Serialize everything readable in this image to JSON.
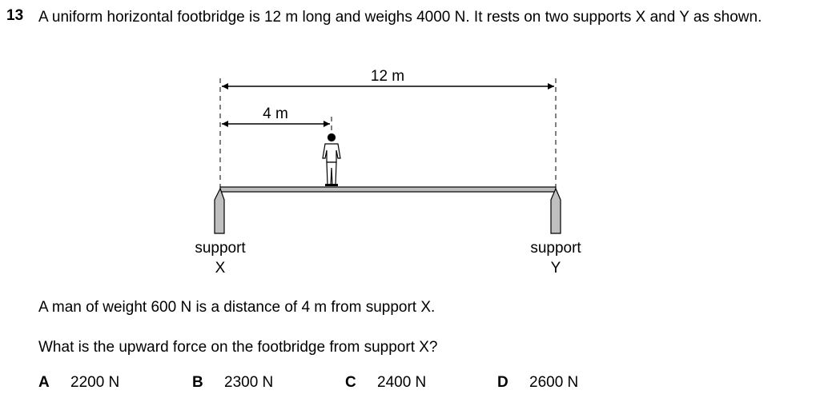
{
  "question": {
    "number": "13",
    "stem": "A uniform horizontal footbridge is 12 m long and weighs 4000 N. It rests on two supports X and Y as shown."
  },
  "diagram": {
    "length_label": "12 m",
    "distance_label": "4 m",
    "support_x_label_line1": "support",
    "support_x_label_line2": "X",
    "support_y_label_line1": "support",
    "support_y_label_line2": "Y"
  },
  "text": {
    "statement": "A man of weight 600 N is a distance of 4 m from support X.",
    "prompt": "What is the upward force on the footbridge from support X?"
  },
  "options": [
    {
      "letter": "A",
      "text": "2200 N"
    },
    {
      "letter": "B",
      "text": "2300 N"
    },
    {
      "letter": "C",
      "text": "2400 N"
    },
    {
      "letter": "D",
      "text": "2600 N"
    }
  ],
  "colors": {
    "beam_fill": "#bdbdbd",
    "support_fill": "#bfbfbf",
    "line": "#000000"
  }
}
